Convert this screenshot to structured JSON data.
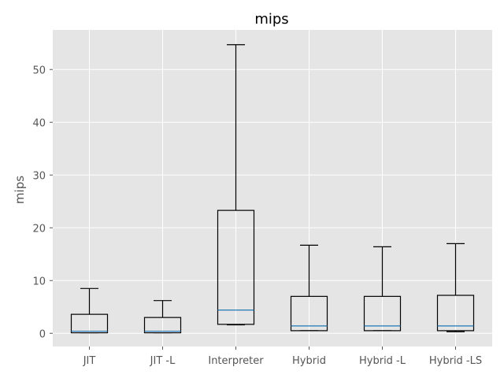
{
  "chart_data": {
    "type": "box",
    "title": "mips",
    "xlabel": "",
    "ylabel": "mips",
    "ylim": [
      -2.5,
      57.5
    ],
    "yticks": [
      0,
      10,
      20,
      30,
      40,
      50
    ],
    "grid": true,
    "legend": "none",
    "categories": [
      "JIT",
      "JIT -L",
      "Interpreter",
      "Hybrid",
      "Hybrid -L",
      "Hybrid -LS"
    ],
    "boxes": [
      {
        "label": "JIT",
        "whislo": 0.1,
        "q1": 0.1,
        "med": 0.4,
        "q3": 3.6,
        "whishi": 8.5
      },
      {
        "label": "JIT -L",
        "whislo": 0.1,
        "q1": 0.1,
        "med": 0.4,
        "q3": 3.0,
        "whishi": 6.2
      },
      {
        "label": "Interpreter",
        "whislo": 1.6,
        "q1": 1.7,
        "med": 4.4,
        "q3": 23.3,
        "whishi": 54.7
      },
      {
        "label": "Hybrid",
        "whislo": 0.5,
        "q1": 0.5,
        "med": 1.4,
        "q3": 7.0,
        "whishi": 16.7
      },
      {
        "label": "Hybrid -L",
        "whislo": 0.5,
        "q1": 0.5,
        "med": 1.4,
        "q3": 7.0,
        "whishi": 16.4
      },
      {
        "label": "Hybrid -LS",
        "whislo": 0.3,
        "q1": 0.5,
        "med": 1.4,
        "q3": 7.2,
        "whishi": 17.0
      }
    ],
    "colors": {
      "plot_background": "#e5e5e5",
      "grid": "#ffffff",
      "box_edge": "#000000",
      "median": "#1f77b4"
    }
  }
}
